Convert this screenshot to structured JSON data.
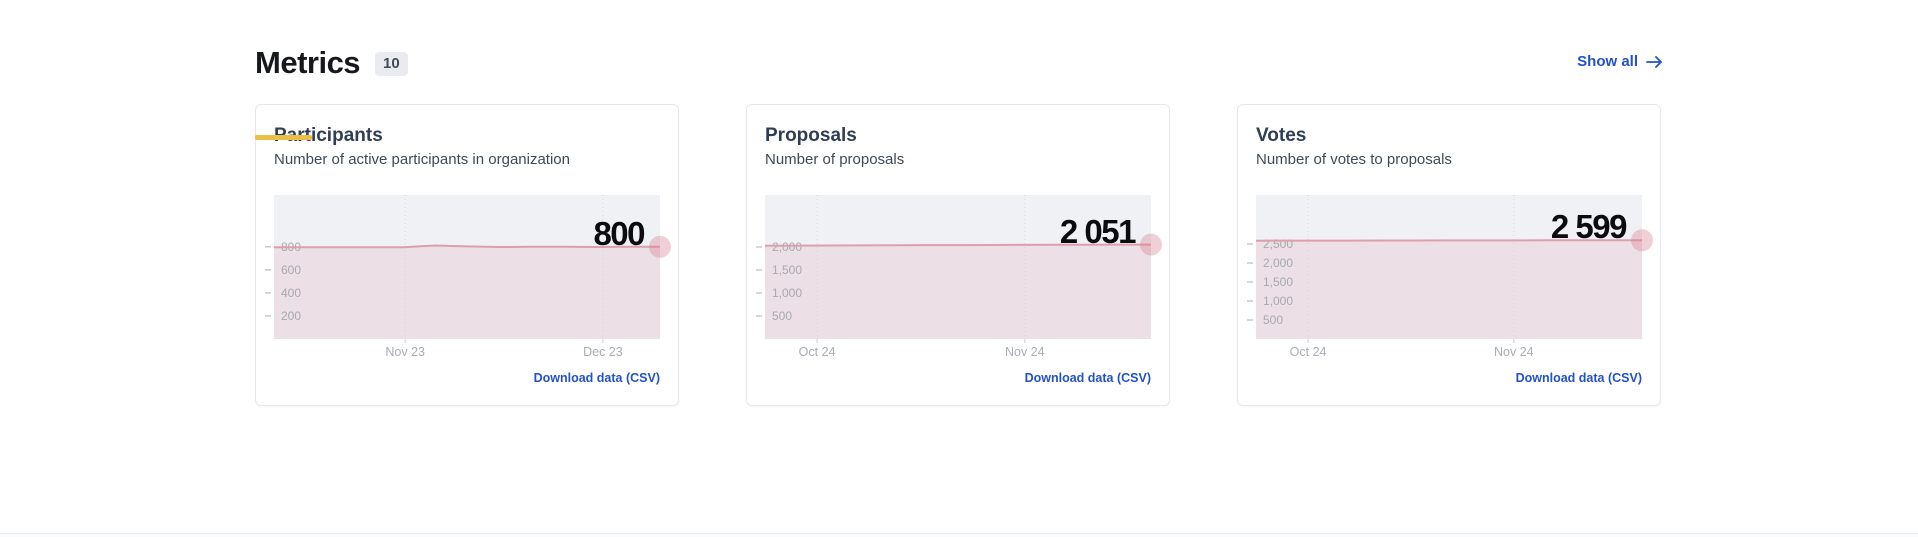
{
  "header": {
    "title": "Metrics",
    "count": "10",
    "show_all_label": "Show all"
  },
  "theme": {
    "link_blue": "#2352c7",
    "accent_yellow": "#e9bf45",
    "plot_bg": "#f0f1f5",
    "line_pink": "#dd9fac",
    "area_pink": "rgba(219,128,148,0.16)",
    "marker_pink": "rgba(219,128,148,0.38)",
    "grid_dot": "#d6d8dd",
    "tick_dash": "#b9bcc2",
    "tick_text": "#a7aab1"
  },
  "cards": [
    {
      "title": "Participants",
      "subtitle": "Number of active participants in organization",
      "download_label": "Download data (CSV)"
    },
    {
      "title": "Proposals",
      "subtitle": "Number of proposals",
      "download_label": "Download data (CSV)"
    },
    {
      "title": "Votes",
      "subtitle": "Number of votes to proposals",
      "download_label": "Download data (CSV)"
    }
  ],
  "chart_data": [
    {
      "type": "area",
      "title": "Participants",
      "x_ticks": [
        {
          "label": "Nov 23",
          "f": 0.34
        },
        {
          "label": "Dec 23",
          "f": 0.852
        }
      ],
      "y_ticks": [
        {
          "label": "200",
          "v": 200
        },
        {
          "label": "400",
          "v": 400
        },
        {
          "label": "600",
          "v": 600
        },
        {
          "label": "800",
          "v": 800
        }
      ],
      "ylim": [
        0,
        1250
      ],
      "values": [
        797,
        797,
        796,
        797,
        797,
        812,
        804,
        799,
        800,
        800,
        799,
        800,
        800
      ],
      "end_value": 800,
      "end_label": "800",
      "grid": "x-dotted",
      "legend": "none"
    },
    {
      "type": "area",
      "title": "Proposals",
      "x_ticks": [
        {
          "label": "Oct 24",
          "f": 0.135
        },
        {
          "label": "Nov 24",
          "f": 0.673
        }
      ],
      "y_ticks": [
        {
          "label": "500",
          "v": 500
        },
        {
          "label": "1,000",
          "v": 1000
        },
        {
          "label": "1,500",
          "v": 1500
        },
        {
          "label": "2,000",
          "v": 2000
        }
      ],
      "ylim": [
        0,
        3130
      ],
      "values": [
        2028,
        2030,
        2032,
        2035,
        2037,
        2040,
        2042,
        2044,
        2046,
        2048,
        2050,
        2051,
        2051
      ],
      "end_value": 2051,
      "end_label": "2 051",
      "grid": "x-dotted",
      "legend": "none"
    },
    {
      "type": "area",
      "title": "Votes",
      "x_ticks": [
        {
          "label": "Oct 24",
          "f": 0.135
        },
        {
          "label": "Nov 24",
          "f": 0.668
        }
      ],
      "y_ticks": [
        {
          "label": "500",
          "v": 500
        },
        {
          "label": "1,000",
          "v": 1000
        },
        {
          "label": "1,500",
          "v": 1500
        },
        {
          "label": "2,000",
          "v": 2000
        },
        {
          "label": "2,500",
          "v": 2500
        }
      ],
      "ylim": [
        0,
        3790
      ],
      "values": [
        2588,
        2590,
        2590,
        2591,
        2592,
        2593,
        2594,
        2595,
        2596,
        2597,
        2598,
        2599,
        2599
      ],
      "end_value": 2599,
      "end_label": "2 599",
      "grid": "x-dotted",
      "legend": "none"
    }
  ]
}
